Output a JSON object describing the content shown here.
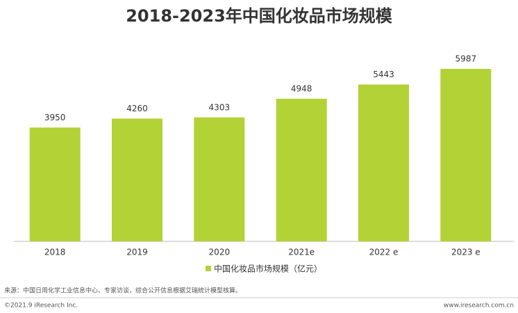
{
  "chart_data": {
    "type": "bar",
    "title": "2018-2023年中国化妆品市场规模",
    "categories": [
      "2018",
      "2019",
      "2020",
      "2021e",
      "2022 e",
      "2023 e"
    ],
    "series": [
      {
        "name": "中国化妆品市场规模（亿元）",
        "color": "#b2d235",
        "values": [
          3950,
          4260,
          4303,
          4948,
          5443,
          5987
        ]
      }
    ],
    "source": "来源：中国日用化学工业信息中心、专家访谈，综合公开信息根据艾瑞统计模型核算。",
    "copyright": "©2021.9 iResearch Inc.",
    "website": "www.iresearch.com.cn"
  }
}
